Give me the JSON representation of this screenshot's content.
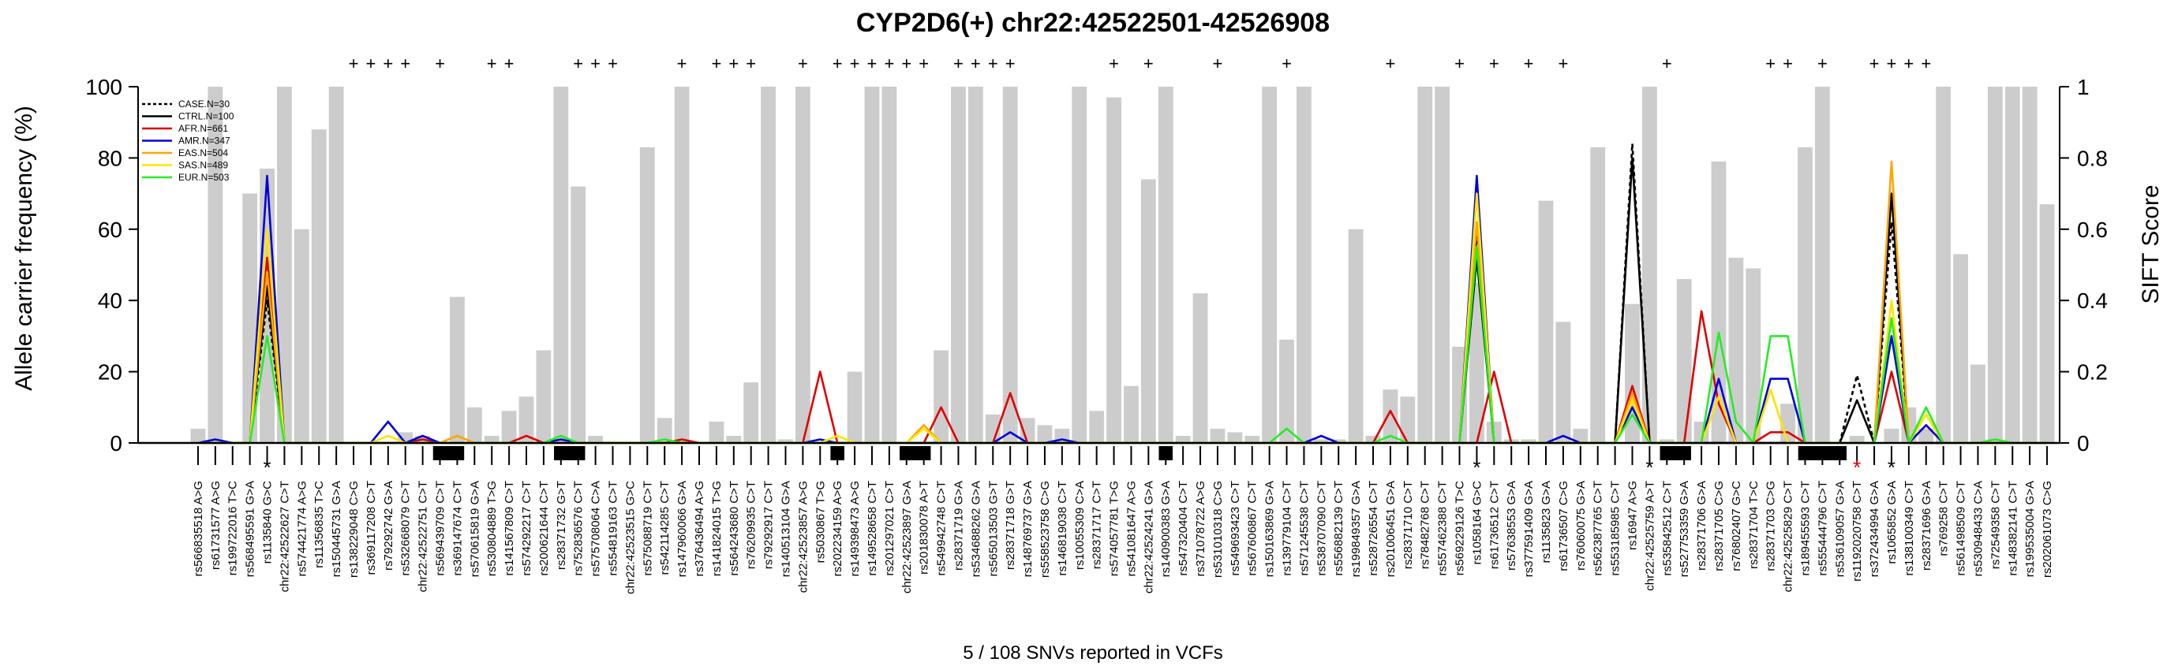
{
  "chart_data": {
    "type": "line",
    "title": "CYP2D6(+) chr22:42522501-42526908",
    "ylabel": "Allele carrier frequency (%)",
    "y2label": "SIFT Score",
    "footer": "5 / 108 SNVs reported in VCFs",
    "ylim": [
      0,
      100
    ],
    "y2lim": [
      0,
      1
    ],
    "yticks": [
      "0",
      "20",
      "40",
      "60",
      "80",
      "100"
    ],
    "y2ticks": [
      "0",
      "0.2",
      "0.4",
      "0.6",
      "0.8",
      "1"
    ],
    "legend_position": "top-left",
    "legend": [
      {
        "label": "CASE.N=30",
        "color": "#000000",
        "dashed": true
      },
      {
        "label": "CTRL.N=100",
        "color": "#000000",
        "dashed": false
      },
      {
        "label": "AFR.N=661",
        "color": "#e00000",
        "dashed": false
      },
      {
        "label": "AMR.N=347",
        "color": "#0000dd",
        "dashed": false
      },
      {
        "label": "EAS.N=504",
        "color": "#ffa500",
        "dashed": false
      },
      {
        "label": "SAS.N=489",
        "color": "#ffe600",
        "dashed": false
      },
      {
        "label": "EUR.N=503",
        "color": "#22ee22",
        "dashed": false
      }
    ],
    "categories": [
      "rs566835518 A>G",
      "rs61731577 A>G",
      "rs199722016 T>C",
      "rs568495591 G>A",
      "rs1135840 G>C",
      "chr22:42522627 C>T",
      "rs574421774 A>G",
      "rs11356835 T>C",
      "rs150445731 G>A",
      "rs138229048 C>G",
      "rs369117208 C>T",
      "rs79292742 G>A",
      "rs532668079 C>T",
      "chr22:42522751 C>T",
      "rs569439709 C>T",
      "rs369147674 C>T",
      "rs570615819 G>A",
      "rs530804889 T>G",
      "rs141567809 C>T",
      "rs574292217 C>T",
      "rs200621644 C>T",
      "rs28371732 G>T",
      "rs752836576 C>T",
      "rs575708064 C>A",
      "rs554819163 C>T",
      "chr22:42523515 G>C",
      "rs575088719 C>T",
      "rs542114285 C>T",
      "rs147960066 G>A",
      "rs376436494 A>G",
      "rs141824015 T>G",
      "rs564243680 C>T",
      "rs76209935 C>T",
      "rs79292917 C>T",
      "rs140513104 G>A",
      "chr22:42523857 A>G",
      "rs5030867 T>G",
      "rs202234159 A>G",
      "rs149398473 A>G",
      "rs149528658 C>T",
      "rs201297021 C>T",
      "chr22:42523897 G>A",
      "rs201830078 A>T",
      "rs549942748 C>T",
      "rs28371719 G>A",
      "rs534688262 G>A",
      "rs565013503 G>T",
      "rs28371718 G>T",
      "rs148769737 G>A",
      "rs558523758 C>G",
      "rs146819038 C>T",
      "rs10055309 C>A",
      "rs28371717 C>T",
      "rs574057781 T>G",
      "rs541081647 A>G",
      "chr22:42524241 G>A",
      "rs140900383 G>A",
      "rs547320404 C>T",
      "rs371078722 A>G",
      "rs531010318 C>G",
      "rs549693423 C>T",
      "rs567606867 C>T",
      "rs150163869 G>A",
      "rs139779104 C>T",
      "rs571245538 C>T",
      "rs538707090 C>T",
      "rs556882139 C>T",
      "rs199849357 G>A",
      "rs528726554 C>T",
      "rs201006451 G>A",
      "rs28371710 C>T",
      "rs78482768 C>T",
      "rs557462388 C>T",
      "rs569229126 T>C",
      "rs1058164 G>C",
      "rs61736512 C>T",
      "rs57638553 G>A",
      "rs377591409 G>A",
      "rs1135823 G>A",
      "rs61736507 C>G",
      "rs76060075 G>A",
      "rs562387765 C>T",
      "rs553185985 C>T",
      "rs16947 A>G",
      "chr22:42525759 A>T",
      "rs535842512 C>T",
      "rs527753359 G>A",
      "rs28371706 G>A",
      "rs28371705 C>G",
      "rs76802407 G>C",
      "rs28371704 T>C",
      "rs28371703 C>G",
      "chr22:42525829 C>T",
      "rs189455593 C>T",
      "rs555444796 C>T",
      "rs536109057 G>A",
      "rs1192020758 C>T",
      "rs372434994 G>A",
      "rs1065852 G>A",
      "rs138100349 C>T",
      "rs28371696 G>A",
      "rs769258 C>T",
      "rs561498509 C>T",
      "rs530948433 C>A",
      "rs72549358 C>T",
      "rs148382141 C>T",
      "rs199535004 G>A",
      "rs202061073 C>G"
    ],
    "sift_scores": [
      0.04,
      1,
      0,
      0.7,
      0.77,
      1,
      0.6,
      0.88,
      1,
      0,
      0,
      0,
      0.03,
      0.02,
      0,
      0.41,
      0.1,
      0.02,
      0.09,
      0.13,
      0.26,
      1,
      0.72,
      0.02,
      0,
      0,
      0.83,
      0.07,
      1,
      0,
      0.06,
      0.02,
      0.17,
      1,
      0.01,
      1,
      0,
      0,
      0.2,
      1,
      1,
      0,
      0,
      0.26,
      1,
      1,
      0.08,
      1,
      0.07,
      0.05,
      0.04,
      1,
      0.09,
      0.97,
      0.16,
      0.74,
      1,
      0.02,
      0.42,
      0.04,
      0.03,
      0.02,
      1,
      0.29,
      1,
      0.01,
      0.01,
      0.6,
      0.02,
      0.15,
      0.13,
      1,
      1,
      0.27,
      0.45,
      0.06,
      0.01,
      0.01,
      0.68,
      0.34,
      0.04,
      0.83,
      0,
      0.39,
      1,
      0.01,
      0.46,
      0.06,
      0.79,
      0.52,
      0.49,
      0,
      0.11,
      0.83,
      1,
      0,
      0.02,
      0,
      0.04,
      0.1,
      0.04,
      1,
      0.53,
      0.22,
      1,
      1,
      1,
      0.67
    ],
    "plus_markers": [
      9,
      10,
      11,
      12,
      14,
      17,
      18,
      22,
      23,
      24,
      28,
      30,
      31,
      32,
      35,
      37,
      38,
      39,
      40,
      41,
      42,
      44,
      45,
      46,
      47,
      53,
      55,
      59,
      63,
      69,
      73,
      75,
      77,
      79,
      85,
      91,
      92,
      94,
      97,
      98,
      99,
      100
    ],
    "star_markers": [
      {
        "index": 4,
        "color": "#000000"
      },
      {
        "index": 74,
        "color": "#000000"
      },
      {
        "index": 84,
        "color": "#000000"
      },
      {
        "index": 96,
        "color": "#e00000"
      },
      {
        "index": 98,
        "color": "#000000"
      }
    ],
    "series": [
      {
        "name": "CASE.N=30",
        "peaks": [
          [
            4,
            40
          ],
          [
            74,
            58
          ],
          [
            83,
            84
          ],
          [
            96,
            19
          ],
          [
            98,
            62
          ]
        ]
      },
      {
        "name": "CTRL.N=100",
        "peaks": [
          [
            4,
            44
          ],
          [
            74,
            52
          ],
          [
            83,
            80
          ],
          [
            96,
            12
          ],
          [
            98,
            70
          ]
        ]
      },
      {
        "name": "AFR.N=661",
        "peaks": [
          [
            4,
            52
          ],
          [
            13,
            1
          ],
          [
            19,
            2
          ],
          [
            28,
            1
          ],
          [
            36,
            20
          ],
          [
            43,
            10
          ],
          [
            47,
            14
          ],
          [
            69,
            9
          ],
          [
            75,
            20
          ],
          [
            83,
            16
          ],
          [
            87,
            37
          ],
          [
            88,
            11
          ],
          [
            91,
            3
          ],
          [
            92,
            3
          ],
          [
            98,
            20
          ],
          [
            100,
            5
          ]
        ]
      },
      {
        "name": "AMR.N=347",
        "peaks": [
          [
            1,
            1
          ],
          [
            4,
            75
          ],
          [
            11,
            6
          ],
          [
            13,
            2
          ],
          [
            21,
            1
          ],
          [
            36,
            1
          ],
          [
            47,
            3
          ],
          [
            50,
            1
          ],
          [
            65,
            2
          ],
          [
            74,
            75
          ],
          [
            79,
            2
          ],
          [
            83,
            10
          ],
          [
            88,
            18
          ],
          [
            91,
            18
          ],
          [
            92,
            18
          ],
          [
            98,
            30
          ],
          [
            100,
            5
          ]
        ]
      },
      {
        "name": "EAS.N=504",
        "peaks": [
          [
            4,
            48
          ],
          [
            15,
            2
          ],
          [
            42,
            5
          ],
          [
            74,
            62
          ],
          [
            83,
            14
          ],
          [
            88,
            13
          ],
          [
            91,
            15
          ],
          [
            98,
            79
          ],
          [
            100,
            8
          ]
        ]
      },
      {
        "name": "SAS.N=489",
        "peaks": [
          [
            4,
            60
          ],
          [
            11,
            2
          ],
          [
            37,
            2
          ],
          [
            42,
            4
          ],
          [
            74,
            70
          ],
          [
            83,
            12
          ],
          [
            88,
            13
          ],
          [
            91,
            15
          ],
          [
            98,
            40
          ],
          [
            100,
            8
          ]
        ]
      },
      {
        "name": "EUR.N=503",
        "peaks": [
          [
            4,
            30
          ],
          [
            21,
            2
          ],
          [
            27,
            1
          ],
          [
            63,
            4
          ],
          [
            69,
            2
          ],
          [
            74,
            55
          ],
          [
            83,
            8
          ],
          [
            88,
            31
          ],
          [
            89,
            6
          ],
          [
            91,
            30
          ],
          [
            92,
            30
          ],
          [
            98,
            35
          ],
          [
            100,
            10
          ],
          [
            104,
            1
          ]
        ]
      }
    ]
  }
}
